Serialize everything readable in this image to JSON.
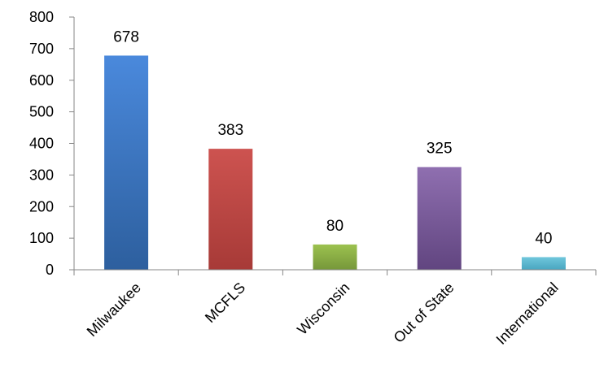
{
  "chart_data": {
    "type": "bar",
    "categories": [
      "Milwaukee",
      "MCFLS",
      "Wisconsin",
      "Out of State",
      "International"
    ],
    "values": [
      678,
      383,
      80,
      325,
      40
    ],
    "data_labels": [
      "678",
      "383",
      "80",
      "325",
      "40"
    ],
    "colors": [
      {
        "top": "#4a89dc",
        "bottom": "#2d5f9e"
      },
      {
        "top": "#cd5350",
        "bottom": "#a73a37"
      },
      {
        "top": "#9cc24f",
        "bottom": "#76973a"
      },
      {
        "top": "#8f6fb0",
        "bottom": "#614580"
      },
      {
        "top": "#6fc6dc",
        "bottom": "#49a6c0"
      }
    ],
    "ylim": [
      0,
      800
    ],
    "yticks": [
      0,
      100,
      200,
      300,
      400,
      500,
      600,
      700,
      800
    ],
    "ytick_labels": [
      "0",
      "100",
      "200",
      "300",
      "400",
      "500",
      "600",
      "700",
      "800"
    ],
    "title": "",
    "xlabel": "",
    "ylabel": "",
    "grid": false,
    "legend": "none"
  }
}
